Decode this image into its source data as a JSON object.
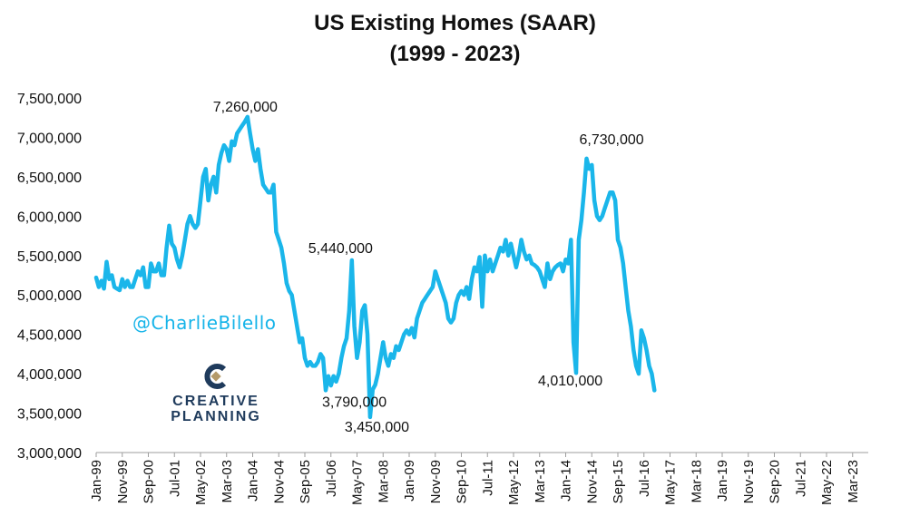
{
  "header": {
    "title_line1": "US Existing Homes (SAAR)",
    "title_line2": "(1999 - 2023)"
  },
  "watermark": {
    "handle": "@CharlieBilello"
  },
  "logo": {
    "line1": "CREATIVE",
    "line2": "PLANNING"
  },
  "colors": {
    "series": "#1ab6ea",
    "handle": "#16b4e9",
    "logo_navy": "#1f3b5c",
    "logo_gold": "#b49a6a"
  },
  "chart_data": {
    "type": "line",
    "title": "US Existing Homes (SAAR) (1999 - 2023)",
    "xlabel": "",
    "ylabel": "",
    "ylim": [
      3000000,
      7500000
    ],
    "yticks": [
      3000000,
      3500000,
      4000000,
      4500000,
      5000000,
      5500000,
      6000000,
      6500000,
      7000000,
      7500000
    ],
    "ytick_labels": [
      "3,000,000",
      "3,500,000",
      "4,000,000",
      "4,500,000",
      "5,000,000",
      "5,500,000",
      "6,000,000",
      "6,500,000",
      "7,000,000",
      "7,500,000"
    ],
    "grid": false,
    "xlim_months": [
      0,
      296
    ],
    "xticks": [
      {
        "label": "Jan-99",
        "m": 0
      },
      {
        "label": "Nov-99",
        "m": 10
      },
      {
        "label": "Sep-00",
        "m": 20
      },
      {
        "label": "Jul-01",
        "m": 30
      },
      {
        "label": "May-02",
        "m": 40
      },
      {
        "label": "Mar-03",
        "m": 50
      },
      {
        "label": "Jan-04",
        "m": 60
      },
      {
        "label": "Nov-04",
        "m": 70
      },
      {
        "label": "Sep-05",
        "m": 80
      },
      {
        "label": "Jul-06",
        "m": 90
      },
      {
        "label": "May-07",
        "m": 100
      },
      {
        "label": "Mar-08",
        "m": 110
      },
      {
        "label": "Jan-09",
        "m": 120
      },
      {
        "label": "Nov-09",
        "m": 130
      },
      {
        "label": "Sep-10",
        "m": 140
      },
      {
        "label": "Jul-11",
        "m": 150
      },
      {
        "label": "May-12",
        "m": 160
      },
      {
        "label": "Mar-13",
        "m": 170
      },
      {
        "label": "Jan-14",
        "m": 180
      },
      {
        "label": "Nov-14",
        "m": 190
      },
      {
        "label": "Sep-15",
        "m": 200
      },
      {
        "label": "Jul-16",
        "m": 210
      },
      {
        "label": "May-17",
        "m": 220
      },
      {
        "label": "Mar-18",
        "m": 230
      },
      {
        "label": "Jan-19",
        "m": 240
      },
      {
        "label": "Nov-19",
        "m": 250
      },
      {
        "label": "Sep-20",
        "m": 260
      },
      {
        "label": "Jul-21",
        "m": 270
      },
      {
        "label": "May-22",
        "m": 280
      },
      {
        "label": "Mar-23",
        "m": 290
      }
    ],
    "series": [
      {
        "name": "US Existing Home Sales (SAAR)",
        "points": [
          [
            0,
            5220000
          ],
          [
            1,
            5100000
          ],
          [
            2,
            5180000
          ],
          [
            3,
            5080000
          ],
          [
            4,
            5420000
          ],
          [
            5,
            5200000
          ],
          [
            6,
            5250000
          ],
          [
            7,
            5100000
          ],
          [
            8,
            5080000
          ],
          [
            9,
            5060000
          ],
          [
            10,
            5200000
          ],
          [
            11,
            5100000
          ],
          [
            12,
            5180000
          ],
          [
            13,
            5100000
          ],
          [
            14,
            5100000
          ],
          [
            15,
            5200000
          ],
          [
            16,
            5300000
          ],
          [
            17,
            5250000
          ],
          [
            18,
            5350000
          ],
          [
            19,
            5100000
          ],
          [
            20,
            5100000
          ],
          [
            21,
            5400000
          ],
          [
            22,
            5300000
          ],
          [
            23,
            5300000
          ],
          [
            24,
            5400000
          ],
          [
            25,
            5250000
          ],
          [
            26,
            5250000
          ],
          [
            27,
            5600000
          ],
          [
            28,
            5880000
          ],
          [
            29,
            5650000
          ],
          [
            30,
            5600000
          ],
          [
            31,
            5450000
          ],
          [
            32,
            5350000
          ],
          [
            33,
            5500000
          ],
          [
            34,
            5700000
          ],
          [
            35,
            5900000
          ],
          [
            36,
            6000000
          ],
          [
            37,
            5900000
          ],
          [
            38,
            5850000
          ],
          [
            39,
            5900000
          ],
          [
            40,
            6200000
          ],
          [
            41,
            6500000
          ],
          [
            42,
            6600000
          ],
          [
            43,
            6200000
          ],
          [
            44,
            6400000
          ],
          [
            45,
            6500000
          ],
          [
            46,
            6300000
          ],
          [
            47,
            6650000
          ],
          [
            48,
            6800000
          ],
          [
            49,
            6900000
          ],
          [
            50,
            6850000
          ],
          [
            51,
            6700000
          ],
          [
            52,
            6950000
          ],
          [
            53,
            6900000
          ],
          [
            54,
            7050000
          ],
          [
            55,
            7100000
          ],
          [
            56,
            7150000
          ],
          [
            57,
            7200000
          ],
          [
            58,
            7260000
          ],
          [
            59,
            7050000
          ],
          [
            60,
            6850000
          ],
          [
            61,
            6700000
          ],
          [
            62,
            6850000
          ],
          [
            63,
            6600000
          ],
          [
            64,
            6400000
          ],
          [
            65,
            6350000
          ],
          [
            66,
            6300000
          ],
          [
            67,
            6300000
          ],
          [
            68,
            6400000
          ],
          [
            69,
            5800000
          ],
          [
            70,
            5700000
          ],
          [
            71,
            5600000
          ],
          [
            72,
            5400000
          ],
          [
            73,
            5150000
          ],
          [
            74,
            5050000
          ],
          [
            75,
            5000000
          ],
          [
            76,
            4800000
          ],
          [
            77,
            4600000
          ],
          [
            78,
            4400000
          ],
          [
            79,
            4450000
          ],
          [
            80,
            4200000
          ],
          [
            81,
            4100000
          ],
          [
            82,
            4150000
          ],
          [
            83,
            4100000
          ],
          [
            84,
            4100000
          ],
          [
            85,
            4150000
          ],
          [
            86,
            4250000
          ],
          [
            87,
            4200000
          ],
          [
            88,
            3790000
          ],
          [
            89,
            3970000
          ],
          [
            90,
            3850000
          ],
          [
            91,
            3970000
          ],
          [
            92,
            3900000
          ],
          [
            93,
            4000000
          ],
          [
            94,
            4200000
          ],
          [
            95,
            4350000
          ],
          [
            96,
            4450000
          ],
          [
            97,
            4800000
          ],
          [
            98,
            5440000
          ],
          [
            99,
            4600000
          ],
          [
            100,
            4200000
          ],
          [
            101,
            4400000
          ],
          [
            102,
            4800000
          ],
          [
            103,
            4870000
          ],
          [
            104,
            4500000
          ],
          [
            105,
            3450000
          ],
          [
            106,
            3800000
          ],
          [
            107,
            3860000
          ],
          [
            108,
            4000000
          ],
          [
            109,
            4200000
          ],
          [
            110,
            4400000
          ],
          [
            111,
            4200000
          ],
          [
            112,
            4100000
          ],
          [
            113,
            4250000
          ],
          [
            114,
            4200000
          ],
          [
            115,
            4350000
          ],
          [
            116,
            4300000
          ],
          [
            117,
            4400000
          ],
          [
            118,
            4500000
          ],
          [
            119,
            4550000
          ],
          [
            120,
            4500000
          ],
          [
            121,
            4580000
          ],
          [
            122,
            4460000
          ],
          [
            123,
            4700000
          ],
          [
            124,
            4800000
          ],
          [
            125,
            4900000
          ],
          [
            126,
            4950000
          ],
          [
            127,
            5000000
          ],
          [
            128,
            5050000
          ],
          [
            129,
            5100000
          ],
          [
            130,
            5300000
          ],
          [
            131,
            5200000
          ],
          [
            132,
            5100000
          ],
          [
            133,
            5000000
          ],
          [
            134,
            4900000
          ],
          [
            135,
            4700000
          ],
          [
            136,
            4650000
          ],
          [
            137,
            4700000
          ],
          [
            138,
            4900000
          ],
          [
            139,
            5000000
          ],
          [
            140,
            5050000
          ],
          [
            141,
            5000000
          ],
          [
            142,
            5100000
          ],
          [
            143,
            4950000
          ],
          [
            144,
            5200000
          ],
          [
            145,
            5350000
          ],
          [
            146,
            5300000
          ],
          [
            147,
            5480000
          ],
          [
            148,
            4850000
          ],
          [
            149,
            5500000
          ],
          [
            150,
            5300000
          ],
          [
            151,
            5450000
          ],
          [
            152,
            5300000
          ],
          [
            153,
            5400000
          ],
          [
            154,
            5500000
          ],
          [
            155,
            5600000
          ],
          [
            156,
            5550000
          ],
          [
            157,
            5700000
          ],
          [
            158,
            5500000
          ],
          [
            159,
            5650000
          ],
          [
            160,
            5500000
          ],
          [
            161,
            5350000
          ],
          [
            162,
            5500000
          ],
          [
            163,
            5700000
          ],
          [
            164,
            5550000
          ],
          [
            165,
            5450000
          ],
          [
            166,
            5500000
          ],
          [
            167,
            5400000
          ],
          [
            168,
            5380000
          ],
          [
            169,
            5350000
          ],
          [
            170,
            5300000
          ],
          [
            171,
            5200000
          ],
          [
            172,
            5100000
          ],
          [
            173,
            5400000
          ],
          [
            174,
            5200000
          ],
          [
            175,
            5300000
          ],
          [
            176,
            5350000
          ],
          [
            177,
            5380000
          ],
          [
            178,
            5400000
          ],
          [
            179,
            5300000
          ],
          [
            180,
            5450000
          ],
          [
            181,
            5400000
          ],
          [
            182,
            5700000
          ],
          [
            183,
            4400000
          ],
          [
            184,
            4010000
          ],
          [
            185,
            5700000
          ],
          [
            186,
            5950000
          ],
          [
            187,
            6300000
          ],
          [
            188,
            6730000
          ],
          [
            189,
            6600000
          ],
          [
            190,
            6650000
          ],
          [
            191,
            6200000
          ],
          [
            192,
            6000000
          ],
          [
            193,
            5950000
          ],
          [
            194,
            6000000
          ],
          [
            195,
            6100000
          ],
          [
            196,
            6200000
          ],
          [
            197,
            6300000
          ],
          [
            198,
            6300000
          ],
          [
            199,
            6200000
          ],
          [
            200,
            5700000
          ],
          [
            201,
            5600000
          ],
          [
            202,
            5400000
          ],
          [
            203,
            5100000
          ],
          [
            204,
            4800000
          ],
          [
            205,
            4600000
          ],
          [
            206,
            4300000
          ],
          [
            207,
            4100000
          ],
          [
            208,
            4000000
          ],
          [
            209,
            4550000
          ],
          [
            210,
            4450000
          ],
          [
            211,
            4300000
          ],
          [
            212,
            4100000
          ],
          [
            213,
            4000000
          ],
          [
            214,
            3790000
          ]
        ]
      }
    ],
    "annotations": [
      {
        "text": "7,260,000",
        "value": 7260000
      },
      {
        "text": "5,440,000",
        "value": 5440000
      },
      {
        "text": "3,450,000",
        "value": 3450000
      },
      {
        "text": "6,730,000",
        "value": 6730000
      },
      {
        "text": "4,010,000",
        "value": 4010000
      },
      {
        "text": "3,790,000",
        "value": 3790000
      }
    ]
  }
}
